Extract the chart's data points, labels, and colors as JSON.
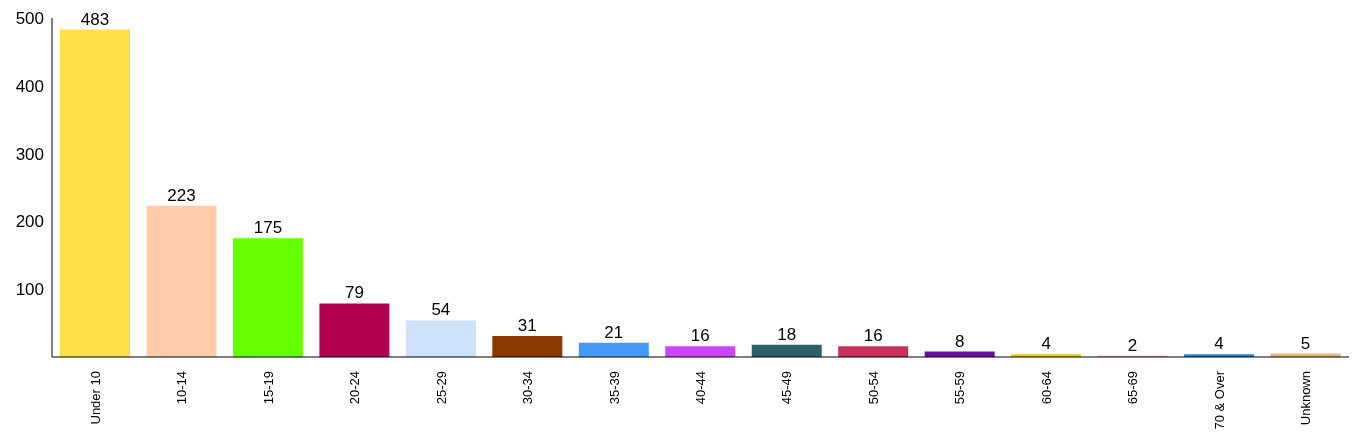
{
  "chart_data": {
    "type": "bar",
    "categories": [
      "Under 10",
      "10-14",
      "15-19",
      "20-24",
      "25-29",
      "30-34",
      "35-39",
      "40-44",
      "45-49",
      "50-54",
      "55-59",
      "60-64",
      "65-69",
      "70 & Over",
      "Unknown"
    ],
    "values": [
      483,
      223,
      175,
      79,
      54,
      31,
      21,
      16,
      18,
      16,
      8,
      4,
      2,
      4,
      5
    ],
    "colors": [
      "#ffdf4a",
      "#ffcba8",
      "#66ff00",
      "#b0004e",
      "#cfe2fc",
      "#8b3a00",
      "#4499f5",
      "#cc44ff",
      "#2f5f6a",
      "#cc2f5a",
      "#6a0da0",
      "#e8c619",
      "#f0a0c0",
      "#2a7fd0",
      "#e8b870"
    ],
    "ylim": [
      0,
      500
    ],
    "yticks": [
      100,
      200,
      300,
      400,
      500
    ],
    "grid": false,
    "data_labels": true
  }
}
